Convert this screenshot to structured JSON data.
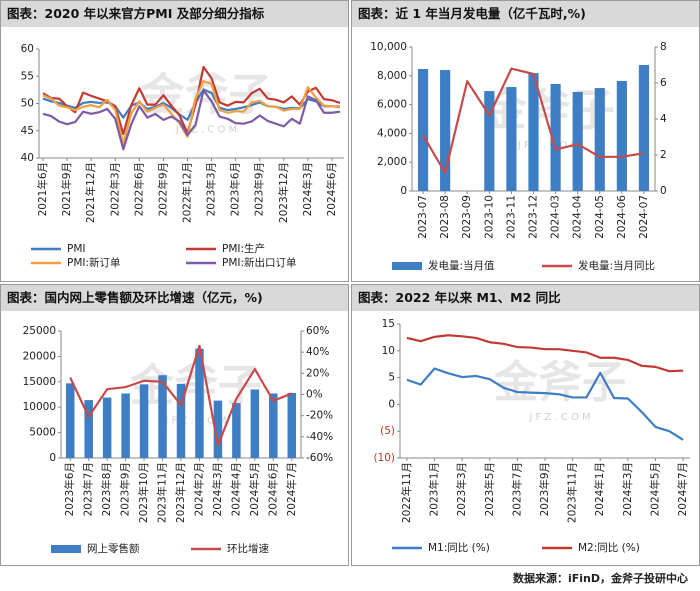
{
  "chart_data": [
    {
      "type": "line",
      "title": "图表：2020 年以来官方PMI 及部分细分指标",
      "categories": [
        "2021年6月",
        null,
        null,
        "2021年9月",
        null,
        null,
        "2021年12月",
        null,
        null,
        "2022年3月",
        null,
        null,
        "2022年6月",
        null,
        null,
        "2022年9月",
        null,
        null,
        "2022年12月",
        null,
        null,
        "2023年3月",
        null,
        null,
        "2023年6月",
        null,
        null,
        "2023年9月",
        null,
        null,
        "2023年12月",
        null,
        null,
        "2024年3月",
        null,
        null,
        "2024年6月",
        null
      ],
      "ylim": [
        40,
        60
      ],
      "yticks": [
        40,
        45,
        50,
        55,
        60
      ],
      "series": [
        {
          "name": "PMI",
          "type": "line",
          "color": "#3d7ec4",
          "values": [
            50.9,
            50.4,
            50.1,
            49.6,
            49.2,
            50.1,
            50.3,
            50.1,
            50.2,
            49.5,
            47.4,
            49.6,
            50.2,
            49.0,
            49.4,
            50.1,
            49.2,
            48.0,
            47.0,
            50.1,
            52.6,
            51.9,
            49.2,
            48.8,
            49.0,
            49.3,
            49.7,
            50.2,
            49.5,
            49.4,
            49.0,
            49.2,
            49.1,
            50.8,
            50.4,
            49.5,
            49.5,
            49.4
          ]
        },
        {
          "name": "PMI:生产",
          "type": "line",
          "color": "#c23a34",
          "values": [
            51.9,
            51.0,
            50.9,
            49.5,
            48.4,
            52.0,
            51.4,
            50.9,
            50.4,
            49.5,
            44.4,
            49.7,
            52.8,
            49.8,
            49.8,
            51.5,
            49.6,
            47.8,
            44.6,
            49.8,
            56.7,
            54.6,
            50.2,
            49.6,
            50.3,
            50.2,
            51.9,
            52.7,
            50.9,
            50.7,
            50.2,
            51.3,
            49.8,
            52.2,
            52.9,
            50.8,
            50.6,
            50.1
          ]
        },
        {
          "name": "PMI:新订单",
          "type": "line",
          "color": "#f0a040",
          "values": [
            51.5,
            50.9,
            49.6,
            49.3,
            48.8,
            49.4,
            49.7,
            49.3,
            50.7,
            48.8,
            42.6,
            48.2,
            50.4,
            48.5,
            49.2,
            49.8,
            48.1,
            46.4,
            43.9,
            50.9,
            54.1,
            53.6,
            48.8,
            48.3,
            48.6,
            48.5,
            50.2,
            50.5,
            49.5,
            49.4,
            48.7,
            49.0,
            49.0,
            53.0,
            51.1,
            49.6,
            49.5,
            49.3
          ]
        },
        {
          "name": "PMI:新出口订单",
          "type": "line",
          "color": "#7d5ba6",
          "values": [
            48.1,
            47.7,
            46.7,
            46.2,
            46.6,
            48.5,
            48.1,
            48.4,
            49.0,
            47.2,
            41.6,
            46.2,
            49.5,
            47.4,
            48.1,
            47.0,
            47.6,
            46.7,
            44.2,
            46.1,
            52.4,
            50.4,
            47.6,
            47.2,
            46.4,
            46.3,
            46.7,
            47.8,
            46.8,
            46.3,
            45.8,
            47.2,
            46.3,
            51.3,
            50.6,
            48.3,
            48.3,
            48.5
          ]
        }
      ]
    },
    {
      "type": "combo",
      "title": "图表：近 1 年当月发电量（亿千瓦时,%)",
      "categories": [
        "2023-07",
        "2023-08",
        "2023-09",
        "2023-10",
        "2023-11",
        "2023-12",
        "2024-03",
        "2024-04",
        "2024-05",
        "2024-06",
        "2024-07"
      ],
      "ylim": [
        0,
        10000
      ],
      "yticks": [
        0,
        {
          "value": 2000,
          "label": "2,000"
        },
        {
          "value": 4000,
          "label": "4,000"
        },
        {
          "value": 6000,
          "label": "6,000"
        },
        {
          "value": 8000,
          "label": "8,000"
        },
        {
          "value": 10000,
          "label": "10,000"
        }
      ],
      "y2lim": [
        0,
        8
      ],
      "y2ticks": [
        0,
        2,
        4,
        6,
        8
      ],
      "series": [
        {
          "name": "发电量:当月值",
          "type": "bar",
          "color": "#3d7ec4",
          "values": [
            8470,
            8400,
            null,
            6940,
            7220,
            8190,
            7430,
            6880,
            7150,
            7640,
            8750
          ]
        },
        {
          "name": "发电量:当月同比",
          "type": "line",
          "axis": "y2",
          "color": "#c84a4a",
          "values": [
            3.1,
            1.0,
            6.1,
            4.2,
            6.8,
            6.5,
            2.3,
            2.6,
            1.9,
            1.9,
            2.1
          ]
        }
      ]
    },
    {
      "type": "combo",
      "title": "图表：国内网上零售额及环比增速（亿元，%)",
      "categories": [
        "2023年6月",
        "2023年7月",
        "2023年8月",
        "2023年9月",
        "2023年10月",
        "2023年11月",
        "2023年12月",
        "2024年2月",
        "2024年3月",
        "2024年4月",
        "2024年5月",
        "2024年6月",
        "2024年7月"
      ],
      "ylim": [
        0,
        25000
      ],
      "yticks": [
        0,
        5000,
        10000,
        15000,
        20000,
        25000
      ],
      "y2lim": [
        -60,
        60
      ],
      "y2ticks": [
        {
          "value": -60,
          "label": "-60%"
        },
        {
          "value": -40,
          "label": "-40%"
        },
        {
          "value": -20,
          "label": "-20%"
        },
        {
          "value": 0,
          "label": "0%"
        },
        {
          "value": 20,
          "label": "20%"
        },
        {
          "value": 40,
          "label": "40%"
        },
        {
          "value": 60,
          "label": "60%"
        }
      ],
      "series": [
        {
          "name": "网上零售额",
          "type": "bar",
          "color": "#3d7ec4",
          "values": [
            14700,
            11400,
            11900,
            12700,
            14500,
            16300,
            14600,
            21500,
            11300,
            10800,
            13500,
            12700,
            12800
          ]
        },
        {
          "name": "环比增速",
          "type": "line",
          "axis": "y2",
          "color": "#c84a4a",
          "values": [
            16,
            -21,
            5,
            7,
            13,
            12,
            -10,
            46,
            -48,
            -4,
            24,
            -6,
            1
          ]
        }
      ]
    },
    {
      "type": "line",
      "title": "图表：2022 年以来 M1、M2 同比",
      "categories": [
        "2022年11月",
        null,
        "2023年1月",
        null,
        "2023年3月",
        null,
        "2023年5月",
        null,
        "2023年7月",
        null,
        "2023年9月",
        null,
        "2023年11月",
        null,
        "2024年1月",
        null,
        "2024年3月",
        null,
        "2024年5月",
        null,
        "2024年7月"
      ],
      "ylim": [
        -10,
        15
      ],
      "yticks": [
        {
          "value": -10,
          "label": "(10)"
        },
        {
          "value": -5,
          "label": "(5)"
        },
        0,
        5,
        10,
        15
      ],
      "series": [
        {
          "name": "M1:同比 (%)",
          "type": "line",
          "color": "#3d7ec4",
          "values": [
            4.6,
            3.7,
            6.7,
            5.8,
            5.1,
            5.3,
            4.7,
            3.1,
            2.3,
            2.2,
            2.1,
            1.9,
            1.3,
            1.3,
            5.9,
            1.2,
            1.1,
            -1.4,
            -4.2,
            -5.0,
            -6.6
          ]
        },
        {
          "name": "M2:同比 (%)",
          "type": "line",
          "color": "#c23a34",
          "values": [
            12.4,
            11.8,
            12.6,
            12.9,
            12.7,
            12.4,
            11.6,
            11.3,
            10.7,
            10.6,
            10.3,
            10.3,
            10.0,
            9.7,
            8.7,
            8.7,
            8.3,
            7.2,
            7.0,
            6.2,
            6.3
          ]
        }
      ]
    }
  ],
  "watermark": {
    "text": "金斧子",
    "sub": "J F Z . C O M"
  },
  "source": "数据来源：iFinD，金斧子投研中心"
}
